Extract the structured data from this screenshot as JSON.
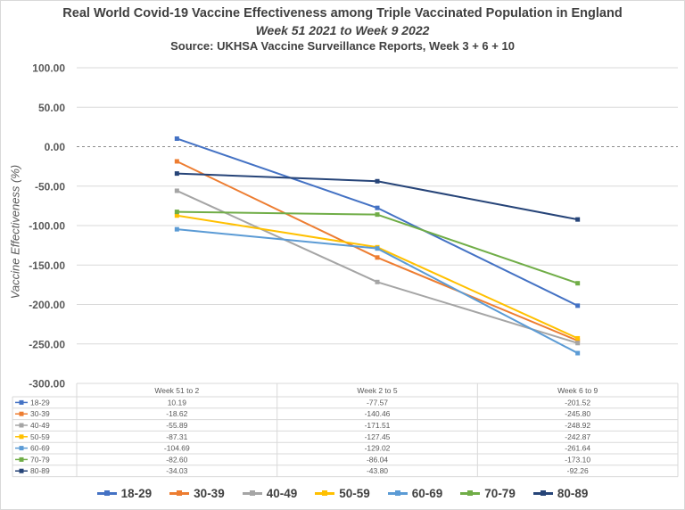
{
  "title": "Real World Covid-19 Vaccine Effectiveness among Triple Vaccinated Population in England",
  "subtitle": "Week 51 2021 to Week 9 2022",
  "source": "Source: UKHSA Vaccine Surveillance Reports, Week 3 + 6 + 10",
  "chart_data": {
    "type": "line",
    "title": "Real World Covid-19 Vaccine Effectiveness among Triple Vaccinated Population in England",
    "xlabel": "",
    "ylabel": "Vaccine Effectiveness (%)",
    "ylim": [
      -300,
      100
    ],
    "ytick_step": 50,
    "y_tick_labels": [
      "100.00",
      "50.00",
      "0.00",
      "-50.00",
      "-100.00",
      "-150.00",
      "-200.00",
      "-250.00",
      "-300.00"
    ],
    "grid": true,
    "zero_line": "dashed",
    "data_table": true,
    "legend_position": "bottom",
    "categories": [
      "Week 51 to 2",
      "Week 2 to 5",
      "Week 6 to 9"
    ],
    "series": [
      {
        "name": "18-29",
        "color": "#4472c4",
        "values": [
          10.19,
          -77.57,
          -201.52
        ],
        "labels": [
          "10.19",
          "-77.57",
          "-201.52"
        ]
      },
      {
        "name": "30-39",
        "color": "#ed7d31",
        "values": [
          -18.62,
          -140.46,
          -245.8
        ],
        "labels": [
          "-18.62",
          "-140.46",
          "-245.80"
        ]
      },
      {
        "name": "40-49",
        "color": "#a5a5a5",
        "values": [
          -55.89,
          -171.51,
          -248.92
        ],
        "labels": [
          "-55.89",
          "-171.51",
          "-248.92"
        ]
      },
      {
        "name": "50-59",
        "color": "#ffc000",
        "values": [
          -87.31,
          -127.45,
          -242.87
        ],
        "labels": [
          "-87.31",
          "-127.45",
          "-242.87"
        ]
      },
      {
        "name": "60-69",
        "color": "#5b9bd5",
        "values": [
          -104.69,
          -129.02,
          -261.64
        ],
        "labels": [
          "-104.69",
          "-129.02",
          "-261.64"
        ]
      },
      {
        "name": "70-79",
        "color": "#70ad47",
        "values": [
          -82.6,
          -86.04,
          -173.1
        ],
        "labels": [
          "-82.60",
          "-86.04",
          "-173.10"
        ]
      },
      {
        "name": "80-89",
        "color": "#264478",
        "values": [
          -34.03,
          -43.8,
          -92.26
        ],
        "labels": [
          "-34.03",
          "-43.80",
          "-92.26"
        ]
      }
    ]
  }
}
